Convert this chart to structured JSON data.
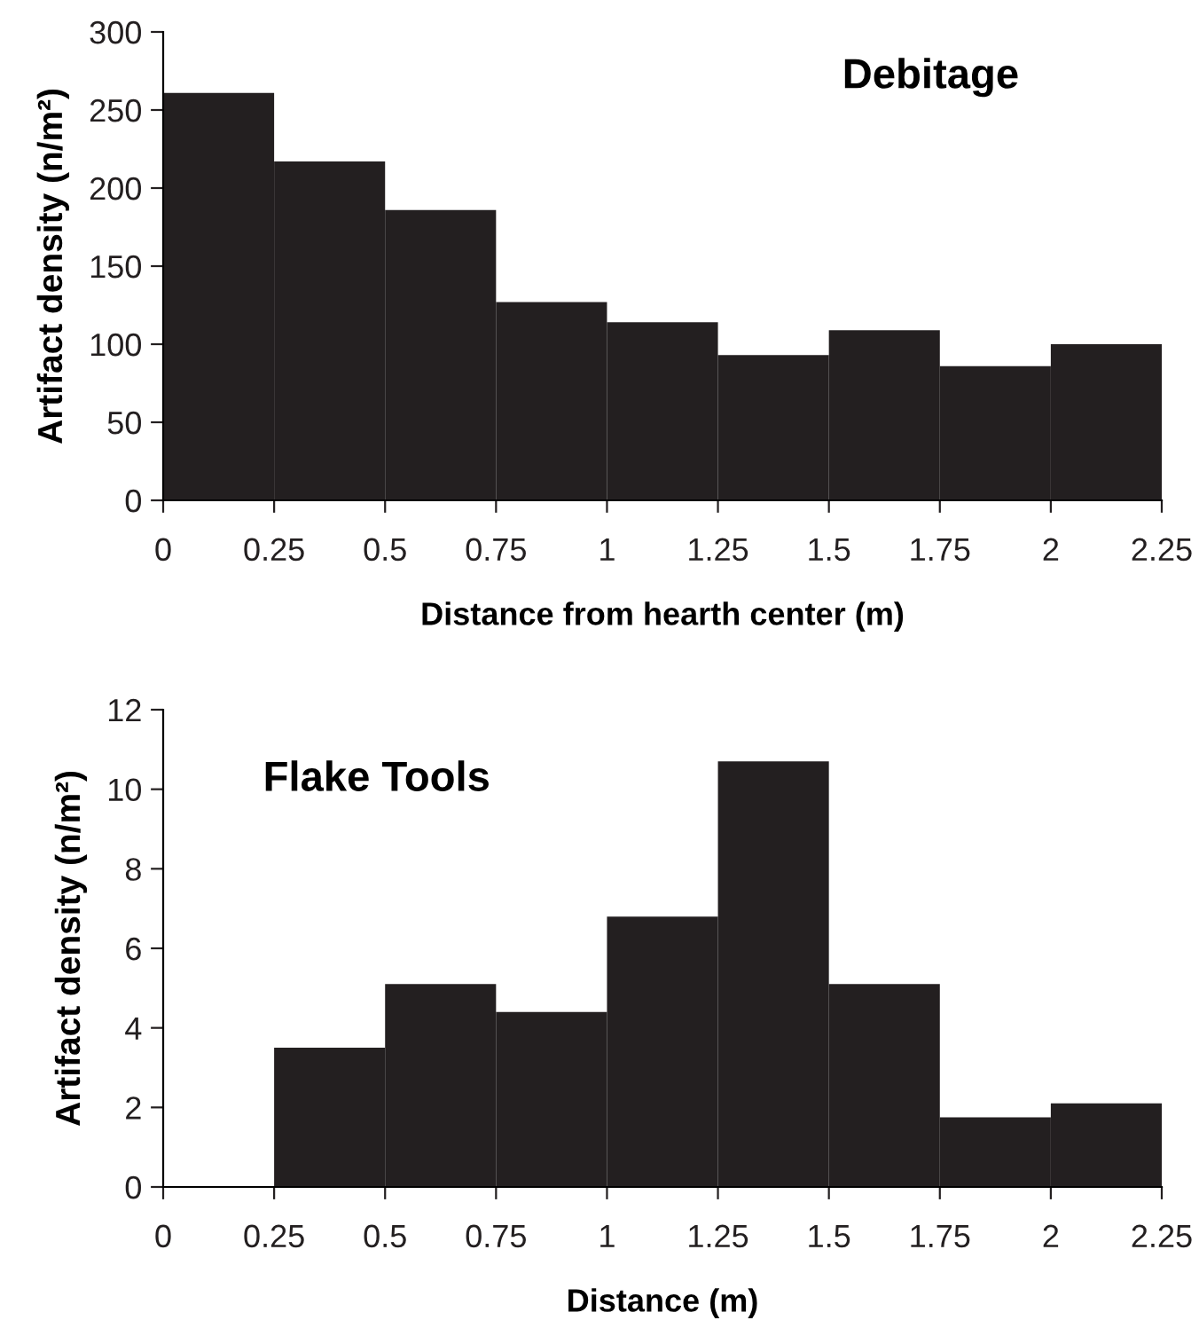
{
  "chart_data": [
    {
      "type": "histogram",
      "title": "Debitage",
      "xlabel": "Distance from hearth center (m)",
      "ylabel": "Artifact density (n/m²)",
      "bins": [
        0,
        0.25,
        0.5,
        0.75,
        1,
        1.25,
        1.5,
        1.75,
        2,
        2.25
      ],
      "values": [
        261,
        217,
        186,
        127,
        114,
        93,
        109,
        86,
        100
      ],
      "color": "#231f20",
      "xlim": [
        0,
        2.25
      ],
      "xticks": [
        0,
        0.25,
        0.5,
        0.75,
        1,
        1.25,
        1.5,
        1.75,
        2,
        2.25
      ],
      "ylim": [
        0,
        300
      ],
      "yticks": [
        0,
        50,
        100,
        150,
        200,
        250,
        300
      ],
      "grid": false
    },
    {
      "type": "histogram",
      "title": "Flake Tools",
      "xlabel": "Distance (m)",
      "ylabel": "Artifact density (n/m²)",
      "bins": [
        0,
        0.25,
        0.5,
        0.75,
        1,
        1.25,
        1.5,
        1.75,
        2,
        2.25
      ],
      "values": [
        0,
        3.5,
        5.1,
        4.4,
        6.8,
        10.7,
        5.1,
        1.75,
        2.1
      ],
      "color": "#231f20",
      "xlim": [
        0,
        2.25
      ],
      "xticks": [
        0,
        0.25,
        0.5,
        0.75,
        1,
        1.25,
        1.5,
        1.75,
        2,
        2.25
      ],
      "ylim": [
        0,
        12
      ],
      "yticks": [
        0,
        2,
        4,
        6,
        8,
        10,
        12
      ],
      "grid": false
    }
  ]
}
